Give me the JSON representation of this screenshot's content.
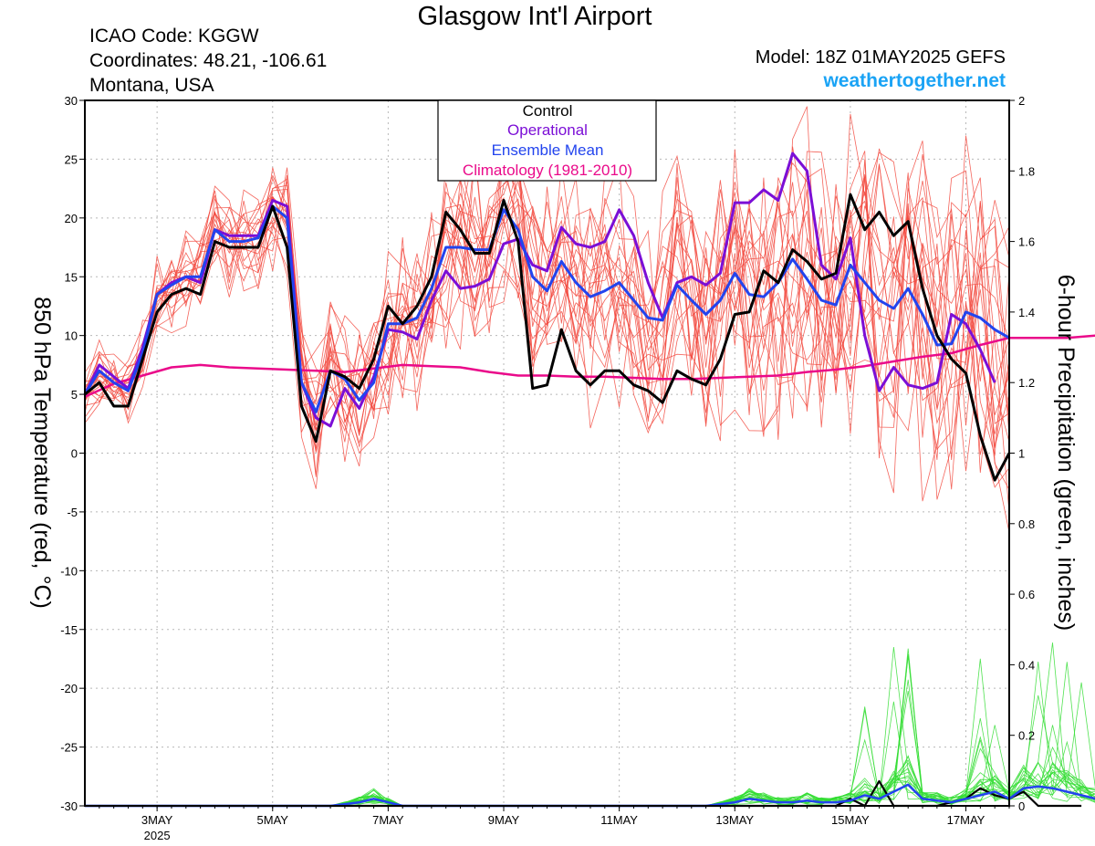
{
  "header": {
    "title": "Glasgow Int'l Airport",
    "icao": "ICAO Code: KGGW",
    "coordinates": "Coordinates: 48.21, -106.61",
    "location": "Montana, USA",
    "model": "Model: 18Z 01MAY2025 GEFS",
    "site": "weathertogether.net"
  },
  "colors": {
    "control": "#000000",
    "operational": "#7b0ed6",
    "ensemble_mean": "#2244ee",
    "climatology": "#ea0a8a",
    "members_temp": "#f24a40",
    "members_precip": "#33dd33",
    "site_link": "#1aa3f5"
  },
  "chart_data": {
    "type": "line",
    "ylabel_left": "850 hPa Temperature (red, °C)",
    "ylabel_right": "6-hour Precipitation (green, inches)",
    "ylim_left": [
      -30,
      30
    ],
    "ylim_right": [
      0,
      2
    ],
    "yticks_left": [
      "30",
      "25",
      "20",
      "15",
      "10",
      "5",
      "0",
      "-5",
      "-10",
      "-15",
      "-20",
      "-25",
      "-30"
    ],
    "yticks_right": [
      "2",
      "1.8",
      "1.6",
      "1.4",
      "1.2",
      "1",
      "0.8",
      "0.6",
      "0.4",
      "0.2",
      "0"
    ],
    "x_range": [
      1.75,
      17.75
    ],
    "x_unit": "day of May 2025 (UTC)",
    "xticks": [
      {
        "day": 3,
        "label": "3MAY",
        "sublabel": "2025"
      },
      {
        "day": 5,
        "label": "5MAY"
      },
      {
        "day": 7,
        "label": "7MAY"
      },
      {
        "day": 9,
        "label": "9MAY"
      },
      {
        "day": 11,
        "label": "11MAY"
      },
      {
        "day": 13,
        "label": "13MAY"
      },
      {
        "day": 15,
        "label": "15MAY"
      },
      {
        "day": 17,
        "label": "17MAY"
      }
    ],
    "grid": true,
    "legend": {
      "position": "top-center",
      "entries": [
        {
          "label": "Control",
          "color": "#000000"
        },
        {
          "label": "Operational",
          "color": "#7b0ed6"
        },
        {
          "label": "Ensemble Mean",
          "color": "#2244ee"
        },
        {
          "label": "Climatology (1981-2010)",
          "color": "#ea0a8a"
        }
      ]
    },
    "series": [
      {
        "name": "Control",
        "axis": "left",
        "values": [
          5,
          6,
          4,
          4,
          8,
          12,
          13.5,
          14,
          13.5,
          18,
          17.5,
          17.5,
          17.5,
          21,
          17.5,
          4,
          1,
          7,
          6.5,
          5.5,
          8,
          12.5,
          11,
          12.5,
          15,
          20.5,
          19,
          17,
          17,
          21.5,
          18,
          5.5,
          5.8,
          10.5,
          7,
          5.8,
          7,
          7,
          5.8,
          5.3,
          4.3,
          7,
          6.3,
          5.8,
          8,
          11.8,
          12,
          15.5,
          14.5,
          17.3,
          16.3,
          14.8,
          15.3,
          22,
          19,
          20.5,
          18.5,
          19.7,
          14,
          10,
          8,
          6.8,
          1.5,
          -2.3,
          0
        ]
      },
      {
        "name": "Operational",
        "axis": "left",
        "values": [
          5,
          7.5,
          6.5,
          5.5,
          9,
          13.5,
          14.5,
          15,
          14.5,
          19,
          18.5,
          18.5,
          18.5,
          21.5,
          21,
          6,
          3,
          2.3,
          5.5,
          3.8,
          6.5,
          10.5,
          10.3,
          9.7,
          13,
          15.5,
          14,
          14.2,
          14.8,
          17.8,
          18.2,
          16,
          15.5,
          19.2,
          17.8,
          17.5,
          18,
          20.7,
          18.5,
          14.5,
          11.5,
          14.5,
          15,
          14.3,
          15.3,
          21.3,
          21.3,
          22.4,
          21.5,
          25.5,
          24,
          16,
          14.8,
          18.3,
          10,
          5.3,
          7.3,
          5.8,
          5.5,
          6,
          11.8,
          11,
          8.8,
          6
        ]
      },
      {
        "name": "Ensemble Mean",
        "axis": "left",
        "values": [
          5,
          7,
          6,
          5.3,
          8.5,
          13.5,
          14.3,
          15,
          15,
          19,
          18,
          18,
          18.3,
          21,
          20,
          6,
          3.5,
          7,
          6.3,
          4.5,
          6,
          11,
          11,
          11.5,
          14,
          17.5,
          17.5,
          17.3,
          17.3,
          20.7,
          19,
          15,
          13.8,
          16.3,
          14.5,
          13.3,
          13.8,
          14.5,
          13,
          11.5,
          11.3,
          14.3,
          13,
          11.8,
          13,
          15.3,
          13.5,
          13.3,
          14.5,
          16.5,
          14.8,
          13,
          12.6,
          16,
          14.5,
          13,
          12.3,
          14,
          11.8,
          9.2,
          9.3,
          12,
          11.5,
          10.5,
          9.8
        ]
      },
      {
        "name": "Climatology (1981-2010)",
        "axis": "left",
        "values": [
          4.8,
          5.9,
          6.6,
          7.3,
          7.5,
          7.3,
          7.2,
          7.1,
          7,
          6.9,
          7.2,
          7.5,
          7.4,
          7.3,
          6.9,
          6.6,
          6.6,
          6.5,
          6.5,
          6.4,
          6.3,
          6.3,
          6.4,
          6.5,
          6.6,
          6.9,
          7.1,
          7.4,
          7.8,
          8.2,
          8.5,
          9.2,
          9.8,
          9.8,
          9.8,
          10,
          10.1
        ]
      },
      {
        "name": "Control precipitation",
        "axis": "right",
        "values": [
          0,
          0,
          0,
          0,
          0,
          0,
          0,
          0,
          0,
          0,
          0,
          0,
          0,
          0,
          0,
          0,
          0,
          0,
          0,
          0,
          0,
          0,
          0,
          0,
          0,
          0,
          0,
          0,
          0,
          0,
          0,
          0,
          0,
          0,
          0,
          0,
          0,
          0,
          0,
          0,
          0,
          0,
          0,
          0,
          0,
          0,
          0,
          0,
          0,
          0,
          0,
          0,
          0,
          0.02,
          0,
          0.07,
          0,
          0,
          0,
          0,
          0.01,
          0.02,
          0.05,
          0.03,
          0.02,
          0.04,
          0,
          0,
          0,
          0
        ]
      },
      {
        "name": "Ensemble mean precipitation",
        "axis": "right",
        "values": [
          0,
          0,
          0,
          0,
          0,
          0,
          0,
          0,
          0,
          0,
          0,
          0,
          0,
          0,
          0,
          0,
          0,
          0,
          0.005,
          0.01,
          0.02,
          0.01,
          0,
          0,
          0,
          0,
          0,
          0,
          0,
          0,
          0,
          0,
          0,
          0,
          0,
          0,
          0,
          0,
          0,
          0,
          0,
          0,
          0,
          0,
          0.005,
          0.01,
          0.02,
          0.015,
          0.01,
          0.01,
          0.015,
          0.01,
          0.01,
          0.015,
          0.03,
          0.02,
          0.04,
          0.06,
          0.02,
          0.015,
          0.01,
          0.02,
          0.03,
          0.04,
          0.02,
          0.05,
          0.055,
          0.05,
          0.04,
          0.03,
          0.02,
          0.05,
          0.02,
          0.02
        ]
      }
    ]
  }
}
